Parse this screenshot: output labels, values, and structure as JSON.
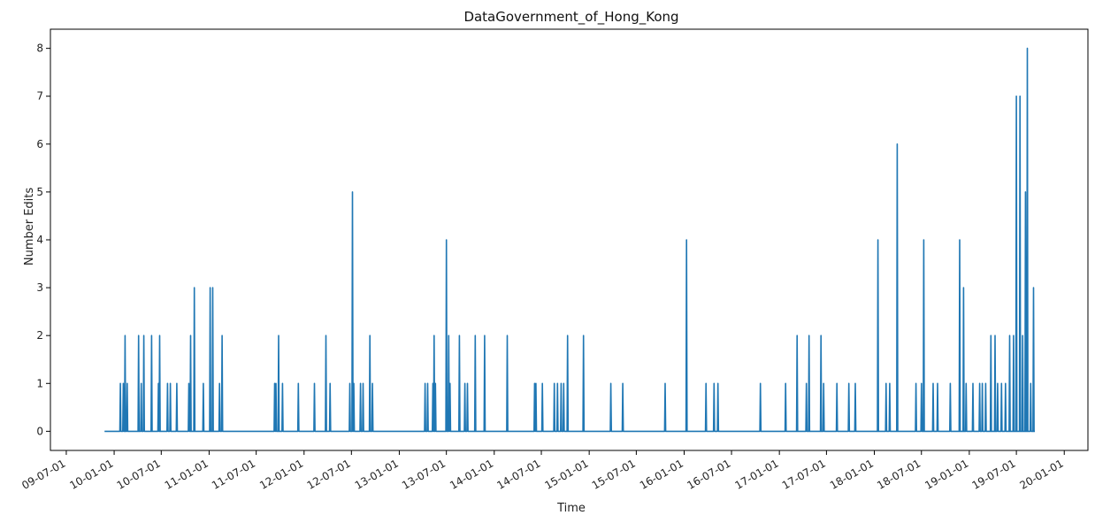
{
  "chart_data": {
    "type": "line",
    "title": "DataGovernment_of_Hong_Kong",
    "xlabel": "Time",
    "ylabel": "Number Edits",
    "xlim": [
      "2009-05-01",
      "2020-04-01"
    ],
    "ylim": [
      -0.4,
      8.4
    ],
    "grid": false,
    "color": "#1f77b4",
    "yticks": [
      0,
      1,
      2,
      3,
      4,
      5,
      6,
      7,
      8
    ],
    "ytick_labels": [
      "0",
      "1",
      "2",
      "3",
      "4",
      "5",
      "6",
      "7",
      "8"
    ],
    "xticks": [
      "2009-07-01",
      "2010-01-01",
      "2010-07-01",
      "2011-01-01",
      "2011-07-01",
      "2012-01-01",
      "2012-07-01",
      "2013-01-01",
      "2013-07-01",
      "2014-01-01",
      "2014-07-01",
      "2015-01-01",
      "2015-07-01",
      "2016-01-01",
      "2016-07-01",
      "2017-01-01",
      "2017-07-01",
      "2018-01-01",
      "2018-07-01",
      "2019-01-01",
      "2019-07-01",
      "2020-01-01"
    ],
    "xtick_labels": [
      "09-07-01",
      "10-01-01",
      "10-07-01",
      "11-01-01",
      "11-07-01",
      "12-01-01",
      "12-07-01",
      "13-01-01",
      "13-07-01",
      "14-01-01",
      "14-07-01",
      "15-01-01",
      "15-07-01",
      "16-01-01",
      "16-07-01",
      "17-01-01",
      "17-07-01",
      "18-01-01",
      "18-07-01",
      "19-01-01",
      "19-07-01",
      "20-01-01"
    ],
    "series": [
      {
        "x_range": [
          "2009-11-25",
          "2019-09-10"
        ],
        "baseline": 0,
        "spikes": [
          [
            "2010-01-25",
            1
          ],
          [
            "2010-02-05",
            1
          ],
          [
            "2010-02-12",
            2
          ],
          [
            "2010-02-20",
            1
          ],
          [
            "2010-04-05",
            2
          ],
          [
            "2010-04-15",
            1
          ],
          [
            "2010-04-25",
            2
          ],
          [
            "2010-05-25",
            2
          ],
          [
            "2010-06-20",
            1
          ],
          [
            "2010-06-25",
            2
          ],
          [
            "2010-07-25",
            1
          ],
          [
            "2010-08-05",
            1
          ],
          [
            "2010-08-30",
            1
          ],
          [
            "2010-10-15",
            1
          ],
          [
            "2010-10-22",
            2
          ],
          [
            "2010-11-05",
            3
          ],
          [
            "2010-12-10",
            1
          ],
          [
            "2011-01-05",
            3
          ],
          [
            "2011-01-15",
            3
          ],
          [
            "2011-02-10",
            1
          ],
          [
            "2011-02-20",
            2
          ],
          [
            "2011-09-10",
            1
          ],
          [
            "2011-09-15",
            1
          ],
          [
            "2011-09-25",
            2
          ],
          [
            "2011-10-10",
            1
          ],
          [
            "2011-12-10",
            1
          ],
          [
            "2012-02-10",
            1
          ],
          [
            "2012-03-25",
            2
          ],
          [
            "2012-04-10",
            1
          ],
          [
            "2012-06-25",
            1
          ],
          [
            "2012-07-05",
            5
          ],
          [
            "2012-07-10",
            1
          ],
          [
            "2012-08-05",
            1
          ],
          [
            "2012-08-15",
            1
          ],
          [
            "2012-09-10",
            2
          ],
          [
            "2012-09-20",
            1
          ],
          [
            "2013-04-10",
            1
          ],
          [
            "2013-04-20",
            1
          ],
          [
            "2013-05-10",
            1
          ],
          [
            "2013-05-15",
            2
          ],
          [
            "2013-05-20",
            1
          ],
          [
            "2013-07-01",
            4
          ],
          [
            "2013-07-10",
            2
          ],
          [
            "2013-07-15",
            1
          ],
          [
            "2013-08-20",
            2
          ],
          [
            "2013-09-10",
            1
          ],
          [
            "2013-09-20",
            1
          ],
          [
            "2013-10-20",
            2
          ],
          [
            "2013-11-25",
            2
          ],
          [
            "2014-02-20",
            2
          ],
          [
            "2014-06-05",
            1
          ],
          [
            "2014-06-10",
            1
          ],
          [
            "2014-07-05",
            1
          ],
          [
            "2014-08-20",
            1
          ],
          [
            "2014-09-01",
            1
          ],
          [
            "2014-09-15",
            1
          ],
          [
            "2014-09-25",
            1
          ],
          [
            "2014-10-10",
            2
          ],
          [
            "2014-12-10",
            2
          ],
          [
            "2015-03-25",
            1
          ],
          [
            "2015-05-10",
            1
          ],
          [
            "2015-10-20",
            1
          ],
          [
            "2016-01-10",
            4
          ],
          [
            "2016-03-25",
            1
          ],
          [
            "2016-04-25",
            1
          ],
          [
            "2016-05-10",
            1
          ],
          [
            "2016-10-20",
            1
          ],
          [
            "2017-01-25",
            1
          ],
          [
            "2017-03-10",
            2
          ],
          [
            "2017-04-15",
            1
          ],
          [
            "2017-04-25",
            2
          ],
          [
            "2017-06-10",
            2
          ],
          [
            "2017-06-20",
            1
          ],
          [
            "2017-08-10",
            1
          ],
          [
            "2017-09-25",
            1
          ],
          [
            "2017-10-20",
            1
          ],
          [
            "2018-01-15",
            4
          ],
          [
            "2018-02-15",
            1
          ],
          [
            "2018-03-01",
            1
          ],
          [
            "2018-03-30",
            6
          ],
          [
            "2018-06-10",
            1
          ],
          [
            "2018-07-01",
            1
          ],
          [
            "2018-07-10",
            4
          ],
          [
            "2018-08-15",
            1
          ],
          [
            "2018-09-01",
            1
          ],
          [
            "2018-10-20",
            1
          ],
          [
            "2018-11-25",
            4
          ],
          [
            "2018-12-10",
            3
          ],
          [
            "2018-12-20",
            1
          ],
          [
            "2019-01-15",
            1
          ],
          [
            "2019-02-10",
            1
          ],
          [
            "2019-02-20",
            1
          ],
          [
            "2019-03-05",
            1
          ],
          [
            "2019-03-25",
            2
          ],
          [
            "2019-04-10",
            2
          ],
          [
            "2019-04-20",
            1
          ],
          [
            "2019-05-05",
            1
          ],
          [
            "2019-05-20",
            1
          ],
          [
            "2019-06-05",
            2
          ],
          [
            "2019-06-20",
            2
          ],
          [
            "2019-07-01",
            7
          ],
          [
            "2019-07-15",
            7
          ],
          [
            "2019-07-25",
            2
          ],
          [
            "2019-08-05",
            5
          ],
          [
            "2019-08-12",
            8
          ],
          [
            "2019-08-25",
            1
          ],
          [
            "2019-09-05",
            3
          ]
        ]
      }
    ]
  }
}
